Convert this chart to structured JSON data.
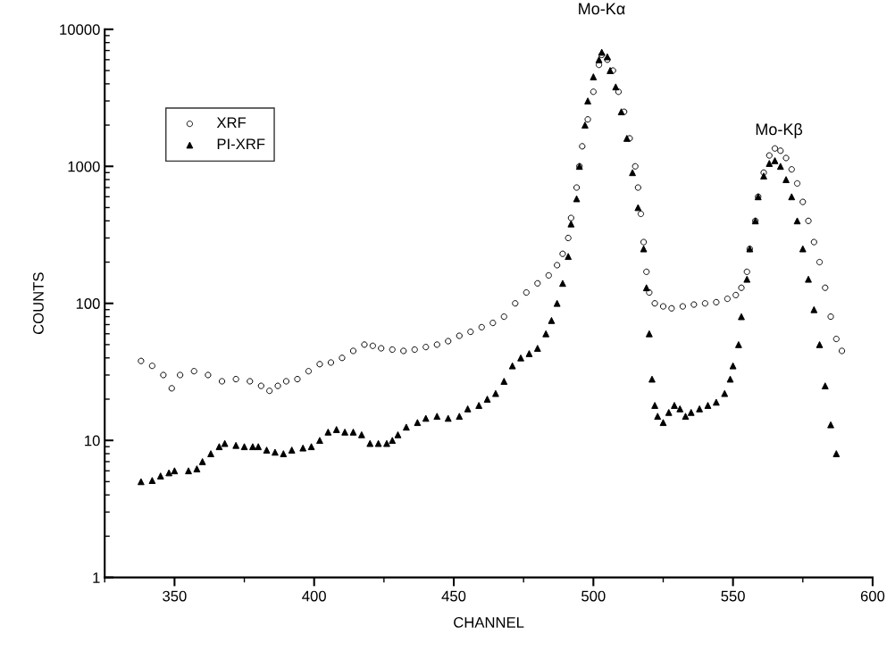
{
  "chart_data": {
    "type": "scatter",
    "xlabel": "CHANNEL",
    "ylabel": "COUNTS",
    "log": "y",
    "xlim": [
      325,
      600
    ],
    "xticks": [
      350,
      400,
      450,
      500,
      550,
      600
    ],
    "ylim": [
      1,
      10000
    ],
    "yticks": [
      1,
      10,
      100,
      1000,
      10000
    ],
    "grid": false,
    "legend": "top left",
    "annotations": [
      "Mo-Kα",
      "Mo-Kβ"
    ],
    "series": [
      {
        "name": "XRF",
        "color": "#000000",
        "marker": "circle",
        "x": [
          338,
          342,
          346,
          349,
          352,
          357,
          362,
          367,
          372,
          377,
          381,
          384,
          387,
          390,
          394,
          398,
          402,
          406,
          410,
          414,
          418,
          421,
          424,
          428,
          432,
          436,
          440,
          444,
          448,
          452,
          456,
          460,
          464,
          468,
          472,
          476,
          480,
          484,
          487,
          489,
          491,
          492,
          494,
          495,
          496,
          498,
          500,
          502,
          503,
          505,
          507,
          509,
          511,
          513,
          515,
          516,
          517,
          518,
          519,
          520,
          522,
          525,
          528,
          532,
          536,
          540,
          544,
          548,
          551,
          553,
          555,
          556,
          558,
          559,
          561,
          563,
          565,
          567,
          569,
          571,
          573,
          575,
          577,
          579,
          581,
          583,
          585,
          587,
          589
        ],
        "values": [
          38,
          35,
          30,
          24,
          30,
          32,
          30,
          27,
          28,
          27,
          25,
          23,
          25,
          27,
          28,
          32,
          36,
          37,
          40,
          45,
          50,
          49,
          47,
          46,
          45,
          46,
          48,
          50,
          53,
          58,
          62,
          67,
          72,
          80,
          100,
          120,
          140,
          160,
          190,
          230,
          300,
          420,
          700,
          1000,
          1400,
          2200,
          3500,
          5500,
          6500,
          6000,
          5000,
          3500,
          2500,
          1600,
          1000,
          700,
          450,
          280,
          170,
          120,
          100,
          95,
          92,
          95,
          98,
          100,
          102,
          108,
          115,
          130,
          170,
          250,
          400,
          600,
          900,
          1200,
          1350,
          1300,
          1150,
          950,
          750,
          550,
          400,
          280,
          200,
          130,
          80,
          55,
          45
        ]
      },
      {
        "name": "PI-XRF",
        "color": "#000000",
        "marker": "triangle",
        "x": [
          338,
          342,
          345,
          348,
          350,
          355,
          358,
          360,
          363,
          366,
          368,
          372,
          375,
          378,
          380,
          383,
          386,
          389,
          392,
          396,
          399,
          402,
          405,
          408,
          411,
          414,
          417,
          420,
          423,
          426,
          428,
          430,
          433,
          437,
          440,
          444,
          448,
          452,
          455,
          459,
          462,
          465,
          468,
          471,
          474,
          477,
          480,
          483,
          485,
          487,
          489,
          491,
          492,
          494,
          495,
          497,
          498,
          500,
          502,
          503,
          505,
          506,
          508,
          510,
          512,
          514,
          516,
          518,
          519,
          520,
          521,
          522,
          523,
          525,
          527,
          529,
          531,
          533,
          535,
          538,
          541,
          544,
          547,
          549,
          550,
          552,
          553,
          555,
          556,
          558,
          559,
          561,
          563,
          565,
          567,
          569,
          571,
          573,
          575,
          577,
          579,
          581,
          583,
          585,
          587
        ],
        "values": [
          5,
          5.1,
          5.5,
          5.8,
          6,
          6,
          6.2,
          7,
          8,
          9,
          9.5,
          9.2,
          9,
          9,
          9,
          8.5,
          8.2,
          8,
          8.5,
          8.8,
          9,
          10,
          11.5,
          12,
          11.5,
          11.5,
          11,
          9.5,
          9.5,
          9.5,
          10,
          11,
          12.5,
          13.5,
          14.5,
          15,
          14.5,
          15,
          17,
          18,
          20,
          22,
          27,
          35,
          40,
          43,
          47,
          60,
          75,
          100,
          140,
          220,
          380,
          580,
          1000,
          2000,
          3000,
          4500,
          6000,
          6800,
          6300,
          5000,
          3800,
          2500,
          1600,
          900,
          500,
          250,
          130,
          60,
          28,
          18,
          15,
          13.5,
          16,
          18,
          17,
          15,
          16,
          17,
          18,
          19,
          22,
          28,
          35,
          50,
          80,
          150,
          250,
          400,
          600,
          850,
          1050,
          1100,
          1000,
          800,
          600,
          400,
          250,
          150,
          90,
          50,
          25,
          13,
          8
        ]
      }
    ]
  }
}
